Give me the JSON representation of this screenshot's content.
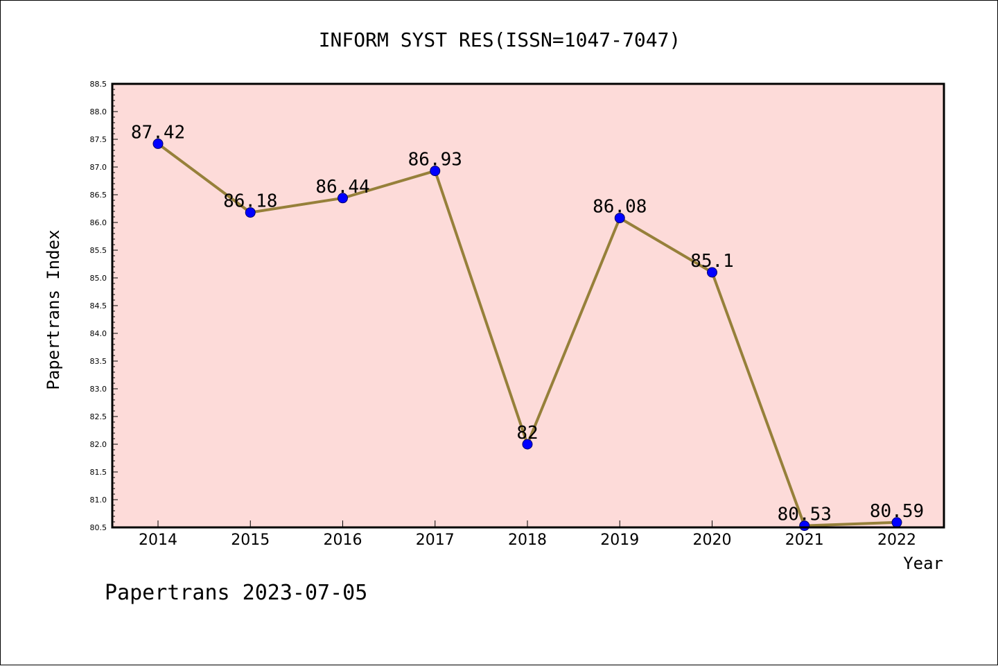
{
  "chart_data": {
    "type": "line",
    "title": "INFORM SYST RES(ISSN=1047-7047)",
    "xlabel": "Year",
    "ylabel": "Papertrans Index",
    "categories": [
      "2014",
      "2015",
      "2016",
      "2017",
      "2018",
      "2019",
      "2020",
      "2021",
      "2022"
    ],
    "values": [
      87.42,
      86.18,
      86.44,
      86.93,
      82,
      86.08,
      85.1,
      80.53,
      80.59
    ],
    "data_labels": [
      "87.42",
      "86.18",
      "86.44",
      "86.93",
      "82",
      "86.08",
      "85.1",
      "80.53",
      "80.59"
    ],
    "ylim": [
      80.5,
      88.5
    ],
    "yticks": [
      "80.5",
      "81.0",
      "81.5",
      "82.0",
      "82.5",
      "83.0",
      "83.5",
      "84.0",
      "84.5",
      "85.0",
      "85.5",
      "86.0",
      "86.5",
      "87.0",
      "87.5",
      "88.0",
      "88.5"
    ],
    "grid": false,
    "legend": "none",
    "colors": {
      "plot_background": "#fddbd9",
      "line": "#96803a",
      "marker": "#0000ff",
      "axis": "#000000"
    }
  },
  "footer": {
    "text": "Papertrans 2023-07-05"
  }
}
